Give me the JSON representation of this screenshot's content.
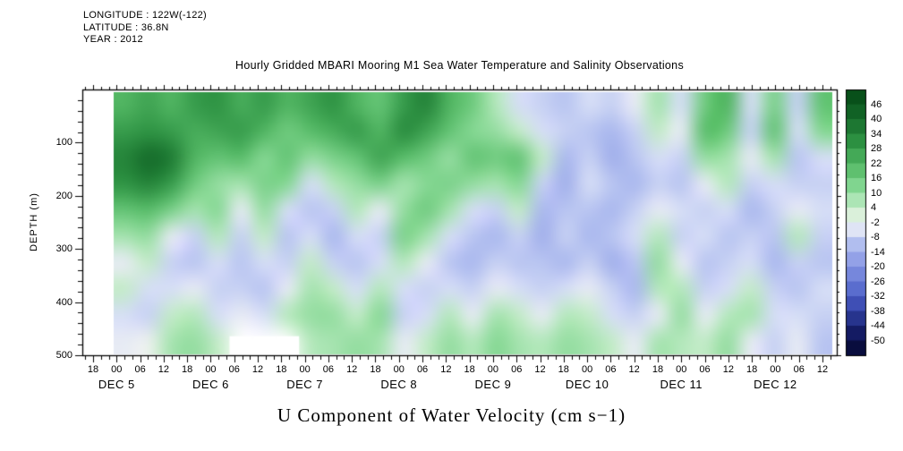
{
  "meta": {
    "longitude": "LONGITUDE : 122W(-122)",
    "latitude": "LATITUDE : 36.8N",
    "year": "YEAR : 2012"
  },
  "title": "Hourly Gridded MBARI Mooring M1 Sea Water Temperature and Salinity Observations",
  "caption": "U Component of Water Velocity (cm s−1)",
  "axes": {
    "y_label": "DEPTH (m)",
    "y_ticks": [
      "100",
      "200",
      "300",
      "400",
      "500"
    ],
    "y_tick_depths": [
      100,
      200,
      300,
      400,
      500
    ],
    "x_time_ticks": [
      "18",
      "00",
      "06",
      "12",
      "18",
      "00",
      "06",
      "12",
      "18",
      "00",
      "06",
      "12",
      "18",
      "00",
      "06",
      "12",
      "18",
      "00",
      "06",
      "12",
      "18",
      "00",
      "06",
      "12",
      "18",
      "00",
      "06",
      "12",
      "18",
      "00",
      "06",
      "12"
    ],
    "x_date_ticks": [
      {
        "label": "DEC 5",
        "tick_index": 1
      },
      {
        "label": "DEC 6",
        "tick_index": 5
      },
      {
        "label": "DEC 7",
        "tick_index": 9
      },
      {
        "label": "DEC 8",
        "tick_index": 13
      },
      {
        "label": "DEC 9",
        "tick_index": 17
      },
      {
        "label": "DEC 10",
        "tick_index": 21
      },
      {
        "label": "DEC 11",
        "tick_index": 25
      },
      {
        "label": "DEC 12",
        "tick_index": 29
      }
    ]
  },
  "colorbar": {
    "tick_values": [
      46,
      40,
      34,
      28,
      22,
      16,
      10,
      4,
      -2,
      -8,
      -14,
      -20,
      -26,
      -32,
      -38,
      -44,
      -50
    ],
    "units": "cm s-1"
  },
  "chart_data": {
    "type": "heatmap",
    "title": "Hourly Gridded MBARI Mooring M1 Sea Water Temperature and Salinity Observations",
    "variable": "U Component of Water Velocity",
    "units": "cm s-1",
    "xlabel_dates": [
      "DEC 5",
      "DEC 6",
      "DEC 7",
      "DEC 8",
      "DEC 9",
      "DEC 10",
      "DEC 11",
      "DEC 12"
    ],
    "ylabel": "DEPTH (m)",
    "depth_range_m": [
      0,
      500
    ],
    "value_range": [
      -50,
      46
    ],
    "colorbar_ticks": [
      46,
      40,
      34,
      28,
      22,
      16,
      10,
      4,
      -2,
      -8,
      -14,
      -20,
      -26,
      -32,
      -38,
      -44,
      -50
    ],
    "colormap_stops": [
      [
        50,
        "#074d18"
      ],
      [
        40,
        "#156b2a"
      ],
      [
        30,
        "#2f9444"
      ],
      [
        20,
        "#59bd6a"
      ],
      [
        12,
        "#86d894"
      ],
      [
        6,
        "#b4e8bc"
      ],
      [
        0,
        "#e2f2e0"
      ],
      [
        -3,
        "#f0f1f3"
      ],
      [
        -6,
        "#d6def6"
      ],
      [
        -12,
        "#aab8ee"
      ],
      [
        -18,
        "#8e9ce6"
      ],
      [
        -24,
        "#7183da"
      ],
      [
        -30,
        "#5568cc"
      ],
      [
        -36,
        "#3a4ab0"
      ],
      [
        -42,
        "#232f86"
      ],
      [
        -48,
        "#11175c"
      ],
      [
        -54,
        "#070b38"
      ]
    ],
    "grid": {
      "note": "Approximate gridded values estimated from fill colors; rows are depth bins (50 m), columns are ~6 h steps DEC 5 18h to DEC 12 12h; null = missing data (white).",
      "rows": 10,
      "cols": 31,
      "row_depth_centers_m": [
        25,
        75,
        125,
        175,
        225,
        275,
        325,
        375,
        425,
        475
      ],
      "values": [
        [
          22,
          26,
          22,
          28,
          30,
          24,
          28,
          22,
          26,
          30,
          22,
          18,
          28,
          34,
          22,
          16,
          6,
          -6,
          -8,
          -10,
          -6,
          -8,
          -4,
          8,
          -6,
          16,
          22,
          -6,
          14,
          -8,
          18
        ],
        [
          28,
          30,
          28,
          24,
          26,
          28,
          22,
          16,
          20,
          24,
          28,
          22,
          32,
          26,
          18,
          12,
          10,
          4,
          -6,
          -8,
          -10,
          -12,
          -8,
          4,
          -4,
          20,
          16,
          -8,
          18,
          -6,
          12
        ],
        [
          34,
          40,
          36,
          22,
          18,
          20,
          12,
          18,
          10,
          14,
          18,
          26,
          20,
          16,
          10,
          18,
          16,
          18,
          4,
          -12,
          -8,
          -14,
          -10,
          -6,
          -8,
          10,
          8,
          -4,
          8,
          -10,
          -6
        ],
        [
          30,
          34,
          28,
          16,
          10,
          8,
          14,
          12,
          -6,
          6,
          10,
          14,
          8,
          12,
          14,
          10,
          8,
          12,
          -8,
          -14,
          -6,
          -10,
          -12,
          -8,
          -10,
          -4,
          6,
          -8,
          -6,
          -8,
          -8
        ],
        [
          18,
          20,
          14,
          8,
          12,
          -4,
          10,
          -6,
          -10,
          -8,
          6,
          -4,
          10,
          16,
          8,
          -6,
          -8,
          4,
          -12,
          -10,
          -10,
          -12,
          -8,
          -4,
          -6,
          -8,
          -6,
          -12,
          -8,
          -4,
          -6
        ],
        [
          8,
          10,
          -4,
          -8,
          6,
          -8,
          4,
          -10,
          -6,
          -12,
          -6,
          -8,
          14,
          8,
          -6,
          -10,
          -12,
          -8,
          -14,
          -8,
          -12,
          -10,
          -6,
          6,
          -8,
          -6,
          -10,
          -8,
          -10,
          6,
          -8
        ],
        [
          -4,
          4,
          -8,
          -10,
          -6,
          -10,
          -6,
          -8,
          4,
          -8,
          -10,
          -6,
          6,
          -4,
          -10,
          -12,
          -8,
          -10,
          -10,
          -12,
          -8,
          -14,
          -10,
          10,
          -4,
          -10,
          -8,
          -6,
          -12,
          -8,
          -10
        ],
        [
          4,
          -6,
          -6,
          -4,
          -8,
          -8,
          -10,
          -4,
          8,
          4,
          -6,
          6,
          -6,
          -8,
          -6,
          -8,
          -4,
          -6,
          -8,
          -6,
          -4,
          -8,
          -12,
          6,
          6,
          -8,
          -6,
          4,
          -8,
          -10,
          -6
        ],
        [
          -6,
          -8,
          4,
          6,
          -6,
          -4,
          -6,
          6,
          10,
          10,
          4,
          12,
          -8,
          -6,
          6,
          -4,
          8,
          4,
          -4,
          6,
          4,
          -6,
          -8,
          -4,
          10,
          -4,
          6,
          8,
          -6,
          -6,
          -8
        ],
        [
          -4,
          -2,
          8,
          10,
          4,
          null,
          null,
          null,
          6,
          8,
          10,
          8,
          -4,
          4,
          10,
          6,
          12,
          8,
          6,
          10,
          8,
          4,
          -4,
          8,
          6,
          4,
          10,
          -4,
          -8,
          -4,
          -10
        ]
      ]
    }
  }
}
